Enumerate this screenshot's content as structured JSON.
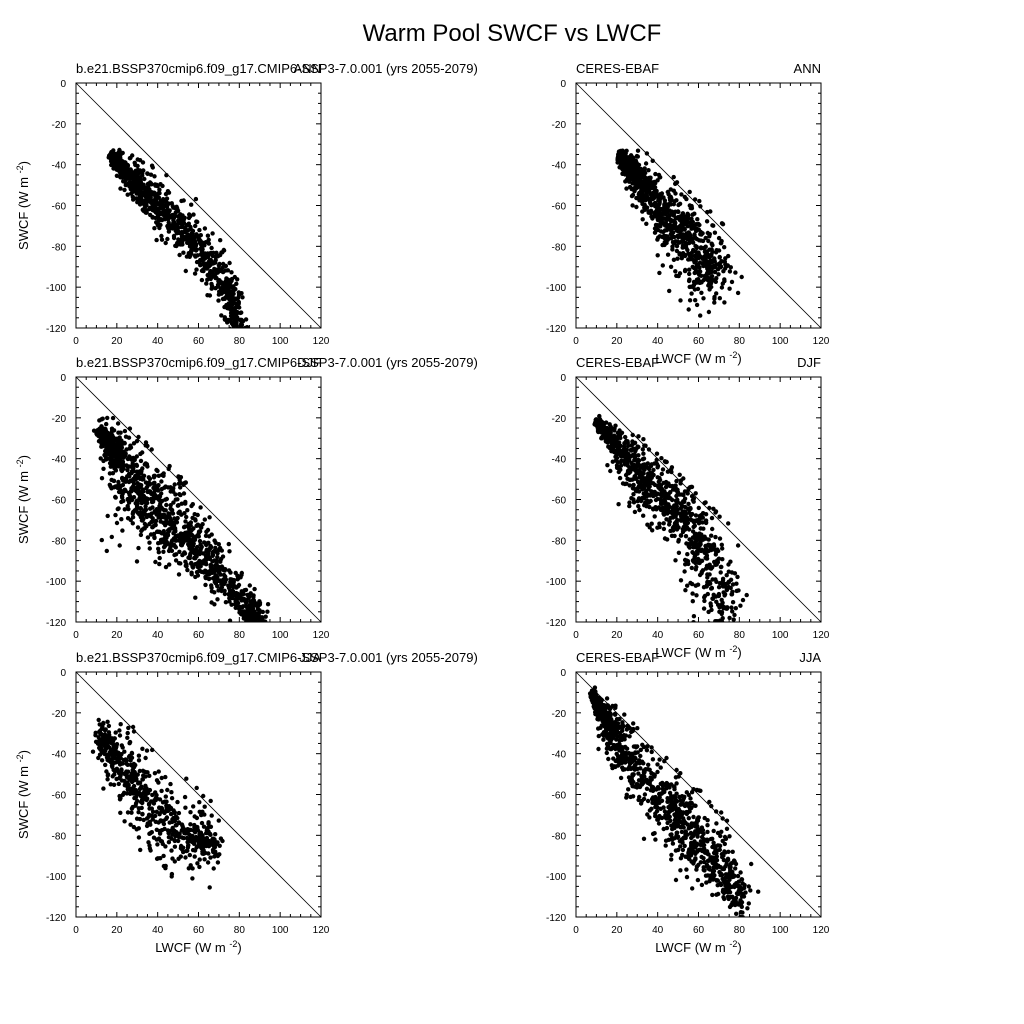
{
  "figure": {
    "title": "Warm Pool SWCF vs LWCF"
  },
  "chart_data": [
    {
      "type": "scatter",
      "left_label": "b.e21.BSSP370cmip6.f09_g17.CMIP6-SSP3-7.0.001 (yrs 2055-2079)",
      "right_label": "ANN",
      "xlabel": "",
      "ylabel": "SWCF (W m-2)",
      "xlim": [
        0,
        120
      ],
      "ylim": [
        -120,
        0
      ],
      "xticks": [
        "0",
        "20",
        "40",
        "60",
        "80",
        "100",
        "120"
      ],
      "yticks": [
        "0",
        "-20",
        "-40",
        "-60",
        "-80",
        "-100",
        "-120"
      ],
      "reference_line": "y = -x",
      "approx_points": 1000,
      "ridge": [
        [
          17,
          -35
        ],
        [
          25,
          -42
        ],
        [
          35,
          -52
        ],
        [
          45,
          -62
        ],
        [
          55,
          -72
        ],
        [
          65,
          -85
        ],
        [
          75,
          -100
        ],
        [
          79,
          -118
        ]
      ],
      "spread": [
        1,
        4,
        5,
        6,
        6,
        5,
        5,
        5,
        3
      ]
    },
    {
      "type": "scatter",
      "left_label": "CERES-EBAF",
      "right_label": "ANN",
      "xlabel": "LWCF (W m-2)",
      "ylabel": "",
      "xlim": [
        0,
        120
      ],
      "ylim": [
        -120,
        0
      ],
      "xticks": [
        "0",
        "20",
        "40",
        "60",
        "80",
        "100",
        "120"
      ],
      "yticks": [
        "0",
        "-20",
        "-40",
        "-60",
        "-80",
        "-100",
        "-120"
      ],
      "reference_line": "y = -x",
      "approx_points": 1000,
      "ridge": [
        [
          21,
          -35
        ],
        [
          28,
          -42
        ],
        [
          35,
          -50
        ],
        [
          45,
          -62
        ],
        [
          55,
          -72
        ],
        [
          62,
          -80
        ],
        [
          70,
          -88
        ]
      ],
      "spread": [
        1,
        4,
        6,
        8,
        10,
        12,
        10,
        8
      ]
    },
    {
      "type": "scatter",
      "left_label": "b.e21.BSSP370cmip6.f09_g17.CMIP6-SSP3-7.0.001 (yrs 2055-2079)",
      "right_label": "DJF",
      "xlabel": "",
      "ylabel": "SWCF (W m-2)",
      "xlim": [
        0,
        120
      ],
      "ylim": [
        -120,
        0
      ],
      "xticks": [
        "0",
        "20",
        "40",
        "60",
        "80",
        "100",
        "120"
      ],
      "yticks": [
        "0",
        "-20",
        "-40",
        "-60",
        "-80",
        "-100",
        "-120"
      ],
      "reference_line": "y = -x",
      "approx_points": 1300,
      "ridge": [
        [
          12,
          -25
        ],
        [
          20,
          -35
        ],
        [
          30,
          -48
        ],
        [
          40,
          -58
        ],
        [
          50,
          -70
        ],
        [
          60,
          -82
        ],
        [
          70,
          -95
        ],
        [
          85,
          -110
        ],
        [
          90,
          -120
        ]
      ],
      "spread": [
        2,
        6,
        12,
        14,
        10,
        7,
        6,
        5,
        4,
        2
      ]
    },
    {
      "type": "scatter",
      "left_label": "CERES-EBAF",
      "right_label": "DJF",
      "xlabel": "LWCF (W m-2)",
      "ylabel": "",
      "xlim": [
        0,
        120
      ],
      "ylim": [
        -120,
        0
      ],
      "xticks": [
        "0",
        "20",
        "40",
        "60",
        "80",
        "100",
        "120"
      ],
      "yticks": [
        "0",
        "-20",
        "-40",
        "-60",
        "-80",
        "-100",
        "-120"
      ],
      "reference_line": "y = -x",
      "approx_points": 1000,
      "ridge": [
        [
          10,
          -22
        ],
        [
          20,
          -32
        ],
        [
          30,
          -42
        ],
        [
          40,
          -52
        ],
        [
          50,
          -62
        ],
        [
          60,
          -75
        ],
        [
          68,
          -90
        ],
        [
          72,
          -115
        ]
      ],
      "spread": [
        1,
        4,
        8,
        9,
        9,
        10,
        12,
        10,
        6
      ]
    },
    {
      "type": "scatter",
      "left_label": "b.e21.BSSP370cmip6.f09_g17.CMIP6-SSP3-7.0.001 (yrs 2055-2079)",
      "right_label": "JJA",
      "xlabel": "LWCF (W m-2)",
      "ylabel": "SWCF (W m-2)",
      "xlim": [
        0,
        120
      ],
      "ylim": [
        -120,
        0
      ],
      "xticks": [
        "0",
        "20",
        "40",
        "60",
        "80",
        "100",
        "120"
      ],
      "yticks": [
        "0",
        "-20",
        "-40",
        "-60",
        "-80",
        "-100",
        "-120"
      ],
      "reference_line": "y = -x",
      "approx_points": 650,
      "ridge": [
        [
          13,
          -30
        ],
        [
          20,
          -40
        ],
        [
          30,
          -52
        ],
        [
          40,
          -62
        ],
        [
          50,
          -72
        ],
        [
          60,
          -80
        ],
        [
          67,
          -82
        ]
      ],
      "spread": [
        3,
        7,
        10,
        12,
        12,
        8,
        5,
        3
      ]
    },
    {
      "type": "scatter",
      "left_label": "CERES-EBAF",
      "right_label": "JJA",
      "xlabel": "LWCF (W m-2)",
      "ylabel": "",
      "xlim": [
        0,
        120
      ],
      "ylim": [
        -120,
        0
      ],
      "xticks": [
        "0",
        "20",
        "40",
        "60",
        "80",
        "100",
        "120"
      ],
      "yticks": [
        "0",
        "-20",
        "-40",
        "-60",
        "-80",
        "-100",
        "-120"
      ],
      "reference_line": "y = -x",
      "approx_points": 1100,
      "ridge": [
        [
          8,
          -10
        ],
        [
          15,
          -22
        ],
        [
          25,
          -38
        ],
        [
          40,
          -55
        ],
        [
          50,
          -65
        ],
        [
          60,
          -78
        ],
        [
          70,
          -92
        ],
        [
          82,
          -108
        ]
      ],
      "spread": [
        1,
        4,
        7,
        9,
        10,
        10,
        8,
        6,
        3
      ]
    }
  ]
}
